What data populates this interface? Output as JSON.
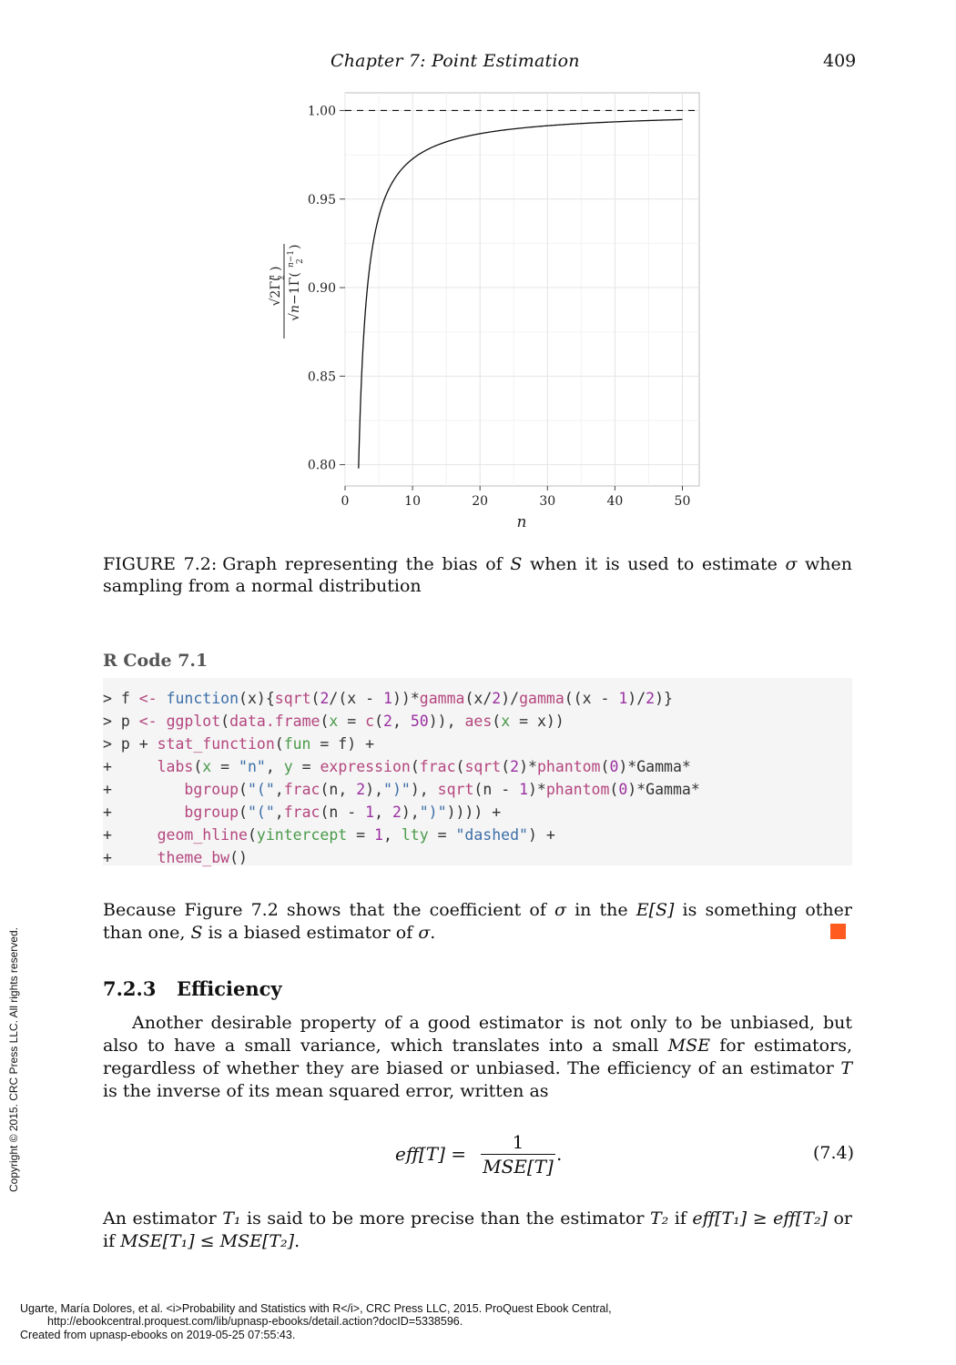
{
  "header": {
    "running_title": "Chapter  7:   Point Estimation",
    "page_number": "409"
  },
  "chart_data": {
    "type": "line",
    "xlabel": "n",
    "ylabel": "√2Γ(n/2) / (√(n−1) Γ((n−1)/2))",
    "xlim": [
      0,
      52.5
    ],
    "ylim": [
      0.788,
      1.01
    ],
    "x_ticks": [
      0,
      10,
      20,
      30,
      40,
      50
    ],
    "x_tick_labels": [
      "0",
      "10",
      "20",
      "30",
      "40",
      "50"
    ],
    "y_ticks": [
      0.8,
      0.85,
      0.9,
      0.95,
      1.0
    ],
    "y_tick_labels": [
      "0.80",
      "0.85",
      "0.90",
      "0.95",
      "1.00"
    ],
    "x_range": [
      2,
      50
    ],
    "function": "sqrt(2/(n-1)) * gamma(n/2) / gamma((n-1)/2)",
    "hline": {
      "y": 1.0,
      "style": "dashed"
    },
    "grid": true,
    "theme": "bw"
  },
  "caption": {
    "lead": "FIGURE 7.2:",
    "text_1": "Graph representing the bias of ",
    "var_s": "S",
    "text_2": " when it is used to estimate ",
    "sigma": "σ",
    "text_3": " when sampling from a normal distribution"
  },
  "code": {
    "title": "R Code 7.1",
    "lines": [
      "> f <- function(x){sqrt(2/(x - 1))*gamma(x/2)/gamma((x - 1)/2)}",
      "> p <- ggplot(data.frame(x = c(2, 50)), aes(x = x))",
      "> p + stat_function(fun = f) +",
      "+     labs(x = \"n\", y = expression(frac(sqrt(2)*phantom(0)*Gamma*",
      "+        bgroup(\"(\",frac(n, 2),\")\"), sqrt(n - 1)*phantom(0)*Gamma*",
      "+        bgroup(\"(\",frac(n - 1, 2),\")\")))) +",
      "+     geom_hline(yintercept = 1, lty = \"dashed\") +",
      "+     theme_bw()"
    ]
  },
  "para1": {
    "t1": "Because Figure 7.2 shows that the coefficient of ",
    "sigma": "σ",
    "t2": " in the ",
    "es": "E[S]",
    "t3": " is something other than one, ",
    "s": "S",
    "t4": " is a biased estimator of ",
    "sigma2": "σ",
    "t5": "."
  },
  "section": {
    "number": "7.2.3",
    "title": "Efficiency"
  },
  "para2": {
    "t1": "Another desirable property of a good estimator is not only to be unbiased, but also to have a small variance, which translates into a small ",
    "mse": "MSE",
    "t2": " for estimators, regardless of whether they are biased or unbiased. The efficiency of an estimator ",
    "t": "T",
    "t3": " is the inverse of its mean squared error, written as"
  },
  "equation": {
    "lhs": "eff[T] =",
    "numerator": "1",
    "denominator": "MSE[T]",
    "dot": ".",
    "number": "(7.4)"
  },
  "para3": {
    "t1": "An estimator ",
    "t1v": "T₁",
    "t2": " is said to be more precise than the estimator ",
    "t2v": "T₂",
    "t3": " if ",
    "c1": "eff[T₁] ≥ eff[T₂]",
    "t4": " or if ",
    "c2": "MSE[T₁] ≤ MSE[T₂]",
    "t5": "."
  },
  "side_copyright": "Copyright © 2015. CRC Press LLC. All rights reserved.",
  "footer": {
    "line1": "Ugarte, María Dolores, et al. <i>Probability and Statistics with R</i>, CRC Press LLC, 2015. ProQuest Ebook Central,",
    "line2": "http://ebookcentral.proquest.com/lib/upnasp-ebooks/detail.action?docID=5338596.",
    "line3": "Created from upnasp-ebooks on 2019-05-25 07:55:43."
  }
}
